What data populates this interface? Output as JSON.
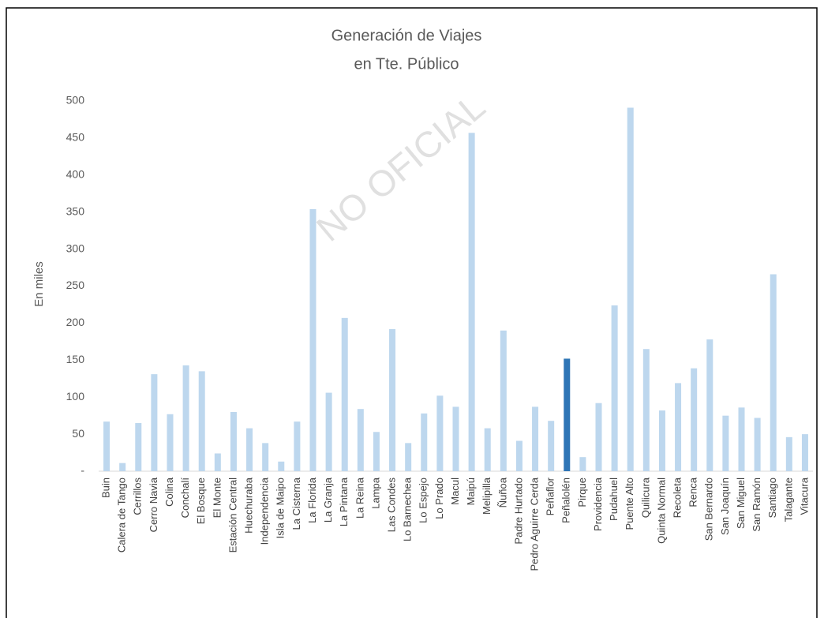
{
  "chart_data": {
    "type": "bar",
    "title": [
      "Generación de Viajes",
      "en Tte. Público"
    ],
    "y_label": "En miles",
    "annotation": "NO OFICIAL",
    "categories": [
      "Buin",
      "Calera de Tango",
      "Cerrillos",
      "Cerro Navia",
      "Colina",
      "Conchalí",
      "El Bosque",
      "El Monte",
      "Estación Central",
      "Huechuraba",
      "Independencia",
      "Isla de Maipo",
      "La Cisterna",
      "La Florida",
      "La Granja",
      "La Pintana",
      "La Reina",
      "Lampa",
      "Las Condes",
      "Lo Barnechea",
      "Lo Espejo",
      "Lo Prado",
      "Macul",
      "Maipú",
      "Melipilla",
      "Ñuñoa",
      "Padre Hurtado",
      "Pedro Aguirre Cerda",
      "Peñaflor",
      "Peñalolén",
      "Pirque",
      "Providencia",
      "Pudahuel",
      "Puente Alto",
      "Quilicura",
      "Quinta Normal",
      "Recoleta",
      "Renca",
      "San Bernardo",
      "San Joaquín",
      "San Miguel",
      "San Ramón",
      "Santiago",
      "Talagante",
      "Vitacura"
    ],
    "values": [
      67,
      11,
      65,
      131,
      77,
      143,
      135,
      24,
      80,
      58,
      38,
      13,
      67,
      354,
      106,
      207,
      84,
      53,
      192,
      38,
      78,
      102,
      87,
      457,
      58,
      190,
      41,
      87,
      68,
      152,
      19,
      92,
      224,
      491,
      165,
      82,
      119,
      139,
      178,
      75,
      86,
      72,
      266,
      46,
      50
    ],
    "color": "#bdd7ee",
    "highlight": {
      "category": "Peñalolén",
      "color": "#2e75b6"
    },
    "ylim": [
      0,
      500
    ],
    "yticks": [
      {
        "value": 0,
        "label": "-"
      },
      50,
      100,
      150,
      200,
      250,
      300,
      350,
      400,
      450,
      500
    ],
    "grid": false
  }
}
